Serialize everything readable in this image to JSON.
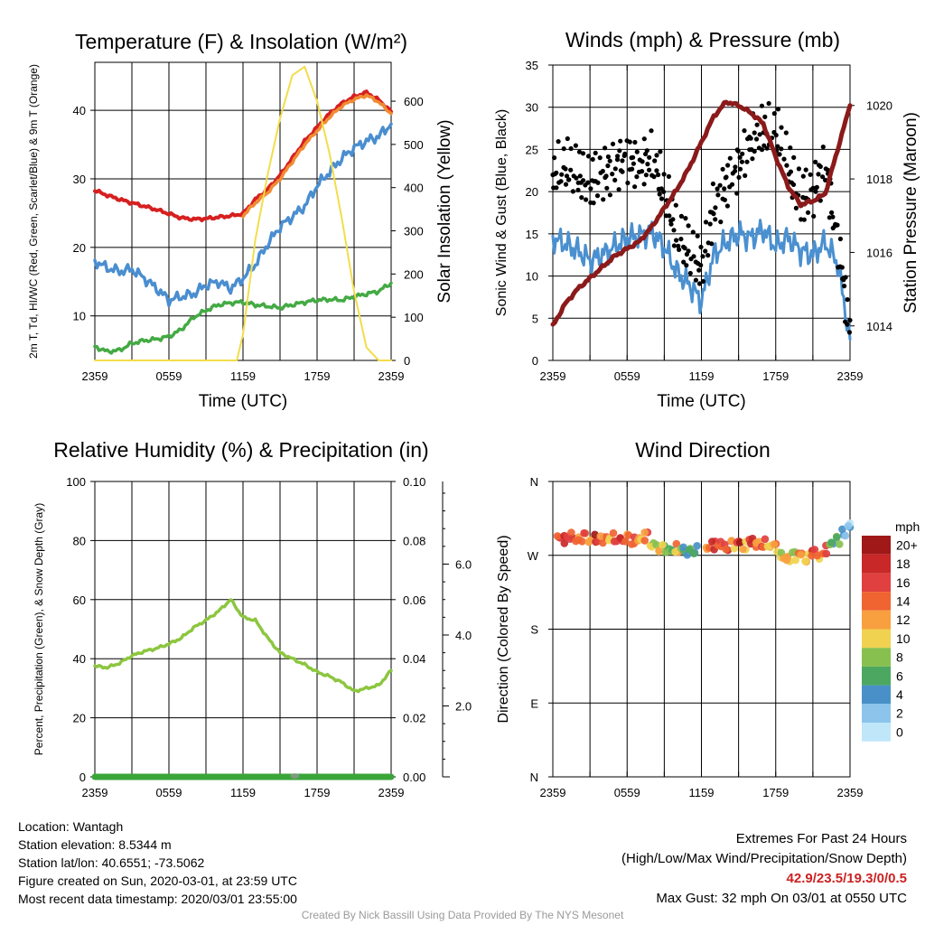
{
  "chart_data": [
    {
      "type": "line",
      "title": "Temperature (F) & Insolation (W/m²)",
      "xlabel": "Time (UTC)",
      "ylabel": "2m T, Td, HI/WC (Red, Green, Scarlet/Blue) & 9m T (Orange)",
      "y2label": "Solar Insolation (Yellow)",
      "x_ticks": [
        "2359",
        "0559",
        "1159",
        "1759",
        "2359"
      ],
      "y_ticks": [
        "10",
        "20",
        "30",
        "40"
      ],
      "y2_ticks": [
        "0",
        "100",
        "200",
        "300",
        "400",
        "500",
        "600"
      ],
      "xlim": [
        0,
        24
      ],
      "ylim": [
        3.5,
        47
      ],
      "y2lim": [
        0,
        690
      ],
      "grid": true,
      "series": [
        {
          "name": "2m T",
          "color": "#d62020",
          "axis": "left",
          "x": [
            0,
            1,
            2,
            3,
            4,
            5,
            6,
            7,
            8,
            9,
            10,
            11,
            12,
            13,
            14,
            15,
            16,
            17,
            18,
            19,
            20,
            21,
            22,
            23,
            24
          ],
          "y": [
            28.3,
            27.6,
            27.0,
            26.5,
            26.0,
            25.5,
            24.9,
            24.3,
            24.1,
            24.2,
            24.4,
            24.6,
            24.9,
            27.0,
            28.5,
            30.5,
            33.0,
            35.5,
            37.5,
            39.5,
            41.0,
            42.0,
            42.6,
            41.5,
            39.8
          ]
        },
        {
          "name": "9m T",
          "color": "#f08c32",
          "axis": "left",
          "x": [
            12,
            13,
            14,
            15,
            16,
            17,
            18,
            19,
            20,
            21,
            22,
            23,
            24
          ],
          "y": [
            24.6,
            26.5,
            28.0,
            30.0,
            32.5,
            35.0,
            37.0,
            39.0,
            40.6,
            41.6,
            42.2,
            41.2,
            39.5
          ]
        },
        {
          "name": "Wind Chill",
          "color": "#4a8ed0",
          "axis": "left",
          "x": [
            0,
            1,
            2,
            3,
            4,
            5,
            6,
            7,
            8,
            9,
            10,
            11,
            12,
            13,
            14,
            15,
            16,
            17,
            18,
            19,
            20,
            21,
            22,
            23,
            24
          ],
          "y": [
            18.0,
            17.0,
            16.5,
            16.8,
            15.5,
            14.0,
            12.3,
            12.8,
            13.2,
            14.5,
            15.0,
            14.0,
            15.5,
            17.5,
            20.5,
            23.0,
            24.5,
            26.0,
            29.0,
            31.0,
            33.0,
            34.5,
            35.5,
            36.2,
            38.0
          ]
        },
        {
          "name": "2m Td",
          "color": "#44aa44",
          "axis": "left",
          "x": [
            0,
            1,
            2,
            3,
            4,
            5,
            6,
            7,
            8,
            9,
            10,
            11,
            12,
            13,
            14,
            15,
            16,
            17,
            18,
            19,
            20,
            21,
            22,
            23,
            24
          ],
          "y": [
            5.5,
            4.8,
            5.0,
            6.0,
            6.4,
            6.6,
            7.0,
            8.0,
            9.8,
            10.8,
            11.6,
            11.9,
            12.0,
            11.6,
            11.4,
            11.2,
            11.6,
            12.0,
            12.3,
            12.4,
            12.3,
            12.8,
            13.2,
            13.6,
            14.8
          ]
        },
        {
          "name": "Solar Insolation",
          "color": "#f2dd4c",
          "axis": "right",
          "x": [
            0,
            11.5,
            12,
            13,
            14,
            15,
            16,
            17,
            18,
            19,
            20,
            21,
            22,
            23,
            24
          ],
          "y": [
            0,
            0,
            60,
            280,
            430,
            560,
            660,
            680,
            600,
            480,
            330,
            160,
            30,
            0,
            0
          ]
        }
      ]
    },
    {
      "type": "line",
      "title": "Winds (mph) & Pressure (mb)",
      "xlabel": "Time (UTC)",
      "ylabel": "Sonic Wind & Gust (Blue, Black)",
      "y2label": "Station Pressure (Maroon)",
      "x_ticks": [
        "2359",
        "0559",
        "1159",
        "1759",
        "2359"
      ],
      "y_ticks": [
        "0",
        "5",
        "10",
        "15",
        "20",
        "25",
        "30",
        "35"
      ],
      "y2_ticks": [
        "1014",
        "1016",
        "1018",
        "1020"
      ],
      "xlim": [
        0,
        24
      ],
      "ylim": [
        0,
        35
      ],
      "y2lim": [
        1013.06,
        1021.1
      ],
      "grid": true,
      "series": [
        {
          "name": "Sonic Wind",
          "color": "#4a90d0",
          "axis": "left",
          "x": [
            0,
            1,
            2,
            3,
            4,
            5,
            6,
            7,
            8,
            9,
            10,
            11,
            12,
            13,
            14,
            15,
            16,
            17,
            18,
            19,
            20,
            21,
            22,
            23,
            24
          ],
          "y": [
            14.5,
            13.8,
            13.0,
            11.8,
            12.5,
            13.5,
            14.5,
            14.8,
            15.2,
            13.5,
            10.5,
            9.0,
            7.0,
            12.5,
            14.0,
            15.0,
            14.5,
            15.5,
            13.5,
            14.5,
            13.0,
            12.5,
            14.0,
            11.5,
            2.5
          ]
        },
        {
          "name": "Gust",
          "color": "#000000",
          "axis": "left",
          "x": [
            0,
            1,
            2,
            3,
            4,
            5,
            6,
            7,
            8,
            9,
            10,
            11,
            12,
            13,
            14,
            15,
            16,
            17,
            18,
            19,
            20,
            21,
            22,
            23,
            24
          ],
          "y": [
            22,
            23,
            22,
            21,
            22,
            23,
            24,
            23,
            24,
            20,
            15,
            13,
            11,
            18,
            21,
            23,
            26,
            27,
            27,
            23,
            19,
            20,
            23,
            14,
            4
          ]
        },
        {
          "name": "Station Pressure",
          "color": "#8b1a1a",
          "axis": "right",
          "x": [
            0,
            1,
            2,
            3,
            4,
            5,
            6,
            7,
            8,
            9,
            10,
            11,
            12,
            13,
            14,
            15,
            16,
            17,
            18,
            19,
            20,
            21,
            22,
            23,
            24
          ],
          "y": [
            1014.0,
            1014.6,
            1015.0,
            1015.3,
            1015.6,
            1015.9,
            1016.1,
            1016.3,
            1016.7,
            1017.2,
            1017.7,
            1018.3,
            1019.0,
            1019.7,
            1020.1,
            1020.0,
            1019.8,
            1019.5,
            1018.6,
            1017.8,
            1017.3,
            1017.4,
            1017.6,
            1018.8,
            1020.0
          ]
        }
      ]
    },
    {
      "type": "line",
      "title": "Relative Humidity (%) & Precipitation (in)",
      "xlabel": "",
      "ylabel": "Percent, Precipitation (Green), & Snow Depth (Gray)",
      "x_ticks": [
        "2359",
        "0559",
        "1159",
        "1759",
        "2359"
      ],
      "y_ticks": [
        "0",
        "20",
        "40",
        "60",
        "80",
        "100"
      ],
      "y2_ticks": [
        "0.00",
        "0.02",
        "0.04",
        "0.06",
        "0.08",
        "0.10"
      ],
      "y3_ticks": [
        "2.0",
        "4.0",
        "6.0"
      ],
      "xlim": [
        0,
        24
      ],
      "ylim": [
        0,
        100
      ],
      "y2lim": [
        0,
        0.1
      ],
      "y3lim": [
        0,
        8.33
      ],
      "grid": true,
      "series": [
        {
          "name": "Relative Humidity",
          "color": "#8cc63f",
          "axis": "left",
          "x": [
            0,
            1,
            2,
            3,
            4,
            5,
            6,
            7,
            8,
            9,
            10,
            11,
            12,
            13,
            14,
            15,
            16,
            17,
            18,
            19,
            20,
            21,
            22,
            23,
            24
          ],
          "y": [
            37.5,
            37.0,
            38.5,
            41.0,
            42.5,
            43.5,
            45.0,
            47.0,
            50.5,
            53.0,
            56.0,
            60.0,
            54.0,
            53.0,
            47.0,
            42.0,
            40.0,
            38.0,
            35.5,
            34.0,
            32.0,
            29.0,
            30.0,
            31.0,
            36.0
          ]
        },
        {
          "name": "Precipitation",
          "color": "#3aa63a",
          "axis": "right",
          "x": [
            0,
            24
          ],
          "y": [
            0.0,
            0.0
          ]
        }
      ]
    },
    {
      "type": "scatter",
      "title": "Wind Direction",
      "xlabel": "",
      "ylabel": "Direction (Colored By Speed)",
      "x_ticks": [
        "2359",
        "0559",
        "1159",
        "1759",
        "2359"
      ],
      "y_ticks": [
        "N",
        "W",
        "S",
        "E",
        "N"
      ],
      "xlim": [
        0,
        24
      ],
      "ylim": [
        0,
        360
      ],
      "grid": true,
      "legend": {
        "title": "mph",
        "labels": [
          "20+",
          "18",
          "16",
          "14",
          "12",
          "10",
          "8",
          "6",
          "4",
          "2",
          "0"
        ],
        "colors": [
          "#a01818",
          "#c82828",
          "#e04040",
          "#f06432",
          "#f8a040",
          "#f0d250",
          "#88c050",
          "#4ca860",
          "#4a90c8",
          "#8cc4ec",
          "#c0e6fa"
        ]
      },
      "points": [
        {
          "x": 0.5,
          "y": 292,
          "s": 16
        },
        {
          "x": 1.0,
          "y": 289,
          "s": 18
        },
        {
          "x": 1.5,
          "y": 294,
          "s": 17
        },
        {
          "x": 2.0,
          "y": 290,
          "s": 14
        },
        {
          "x": 2.5,
          "y": 292,
          "s": 16
        },
        {
          "x": 3.0,
          "y": 288,
          "s": 12
        },
        {
          "x": 3.5,
          "y": 291,
          "s": 19
        },
        {
          "x": 4.0,
          "y": 289,
          "s": 15
        },
        {
          "x": 4.5,
          "y": 290,
          "s": 13
        },
        {
          "x": 5.0,
          "y": 292,
          "s": 17
        },
        {
          "x": 5.5,
          "y": 289,
          "s": 18
        },
        {
          "x": 6.0,
          "y": 291,
          "s": 14
        },
        {
          "x": 6.5,
          "y": 288,
          "s": 16
        },
        {
          "x": 7.0,
          "y": 290,
          "s": 12
        },
        {
          "x": 7.5,
          "y": 293,
          "s": 15
        },
        {
          "x": 8.0,
          "y": 283,
          "s": 10
        },
        {
          "x": 8.5,
          "y": 279,
          "s": 11
        },
        {
          "x": 9.0,
          "y": 278,
          "s": 9
        },
        {
          "x": 9.5,
          "y": 276,
          "s": 8
        },
        {
          "x": 10.0,
          "y": 279,
          "s": 13
        },
        {
          "x": 10.5,
          "y": 277,
          "s": 7
        },
        {
          "x": 11.0,
          "y": 274,
          "s": 7
        },
        {
          "x": 11.5,
          "y": 277,
          "s": 6
        },
        {
          "x": 12.5,
          "y": 279,
          "s": 14
        },
        {
          "x": 13.0,
          "y": 282,
          "s": 18
        },
        {
          "x": 13.5,
          "y": 284,
          "s": 16
        },
        {
          "x": 14.0,
          "y": 280,
          "s": 17
        },
        {
          "x": 14.5,
          "y": 283,
          "s": 13
        },
        {
          "x": 15.0,
          "y": 286,
          "s": 19
        },
        {
          "x": 15.5,
          "y": 282,
          "s": 12
        },
        {
          "x": 16.0,
          "y": 287,
          "s": 18
        },
        {
          "x": 16.5,
          "y": 283,
          "s": 14
        },
        {
          "x": 17.0,
          "y": 285,
          "s": 16
        },
        {
          "x": 17.5,
          "y": 281,
          "s": 12
        },
        {
          "x": 18.0,
          "y": 279,
          "s": 13
        },
        {
          "x": 18.5,
          "y": 270,
          "s": 11
        },
        {
          "x": 19.0,
          "y": 266,
          "s": 12
        },
        {
          "x": 19.5,
          "y": 269,
          "s": 10
        },
        {
          "x": 20.0,
          "y": 272,
          "s": 14
        },
        {
          "x": 20.5,
          "y": 267,
          "s": 12
        },
        {
          "x": 21.0,
          "y": 273,
          "s": 17
        },
        {
          "x": 21.5,
          "y": 268,
          "s": 13
        },
        {
          "x": 22.0,
          "y": 277,
          "s": 16
        },
        {
          "x": 22.5,
          "y": 284,
          "s": 7
        },
        {
          "x": 23.0,
          "y": 288,
          "s": 8
        },
        {
          "x": 23.5,
          "y": 298,
          "s": 4
        },
        {
          "x": 24.0,
          "y": 307,
          "s": 3
        }
      ]
    }
  ],
  "info": {
    "location": "Location: Wantagh",
    "elevation": "Station elevation: 8.5344 m",
    "latlon": "Station lat/lon: 40.6551; -73.5062",
    "created": "Figure created on Sun, 2020-03-01, at 23:59 UTC",
    "recent": "Most recent data timestamp: 2020/03/01 23:55:00"
  },
  "extremes": {
    "title": "Extremes For Past 24 Hours",
    "subtitle": "(High/Low/Max Wind/Precipitation/Snow Depth)",
    "values": "42.9/23.5/19.3/0/0.5",
    "gust": "Max Gust: 32 mph On 03/01 at 0550 UTC"
  },
  "credit": "Created By Nick Bassill Using Data Provided By The NYS Mesonet"
}
